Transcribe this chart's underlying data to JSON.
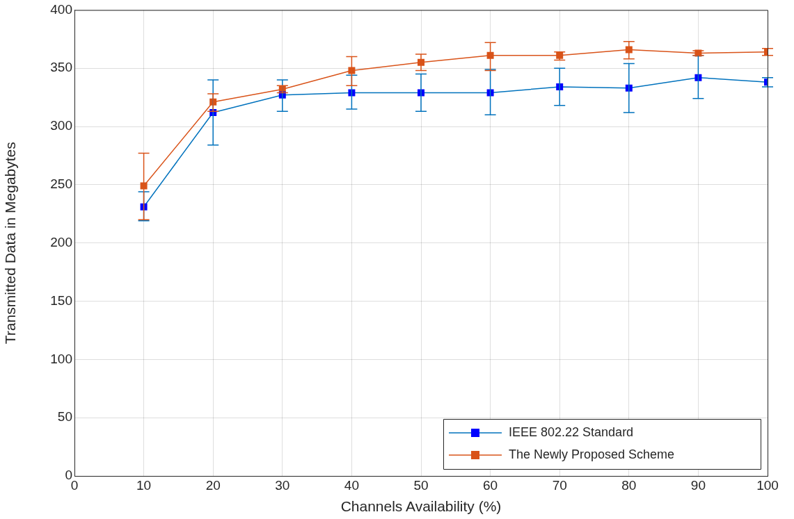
{
  "chart_data": {
    "type": "line",
    "xlabel": "Channels Availability (%)",
    "ylabel": "Transmitted Data in Megabytes",
    "x": [
      10,
      20,
      30,
      40,
      50,
      60,
      70,
      80,
      90,
      100
    ],
    "xlim": [
      0,
      100
    ],
    "xticks": [
      0,
      10,
      20,
      30,
      40,
      50,
      60,
      70,
      80,
      90,
      100
    ],
    "ylim": [
      0,
      400
    ],
    "yticks": [
      0,
      50,
      100,
      150,
      200,
      250,
      300,
      350,
      400
    ],
    "grid": true,
    "legend": "bottom right",
    "marker": "square",
    "line_style": "solid",
    "series": [
      {
        "name": "IEEE 802.22 Standard",
        "color": "#0000ff",
        "values": [
          231,
          312,
          327,
          329,
          329,
          329,
          334,
          333,
          342,
          338
        ],
        "errors": [
          [
            219,
            244
          ],
          [
            284,
            340
          ],
          [
            313,
            340
          ],
          [
            315,
            344
          ],
          [
            313,
            345
          ],
          [
            310,
            349
          ],
          [
            318,
            350
          ],
          [
            312,
            354
          ],
          [
            324,
            361
          ],
          [
            334,
            342
          ]
        ]
      },
      {
        "name": "The Newly Proposed Scheme",
        "color": "#d95319",
        "values": [
          249,
          321,
          332,
          348,
          355,
          361,
          361,
          366,
          363,
          364
        ],
        "errors": [
          [
            220,
            277
          ],
          [
            313,
            328
          ],
          [
            329,
            335
          ],
          [
            335,
            360
          ],
          [
            348,
            362
          ],
          [
            348,
            372
          ],
          [
            357,
            364
          ],
          [
            358,
            373
          ],
          [
            361,
            365
          ],
          [
            361,
            367
          ]
        ]
      }
    ]
  }
}
